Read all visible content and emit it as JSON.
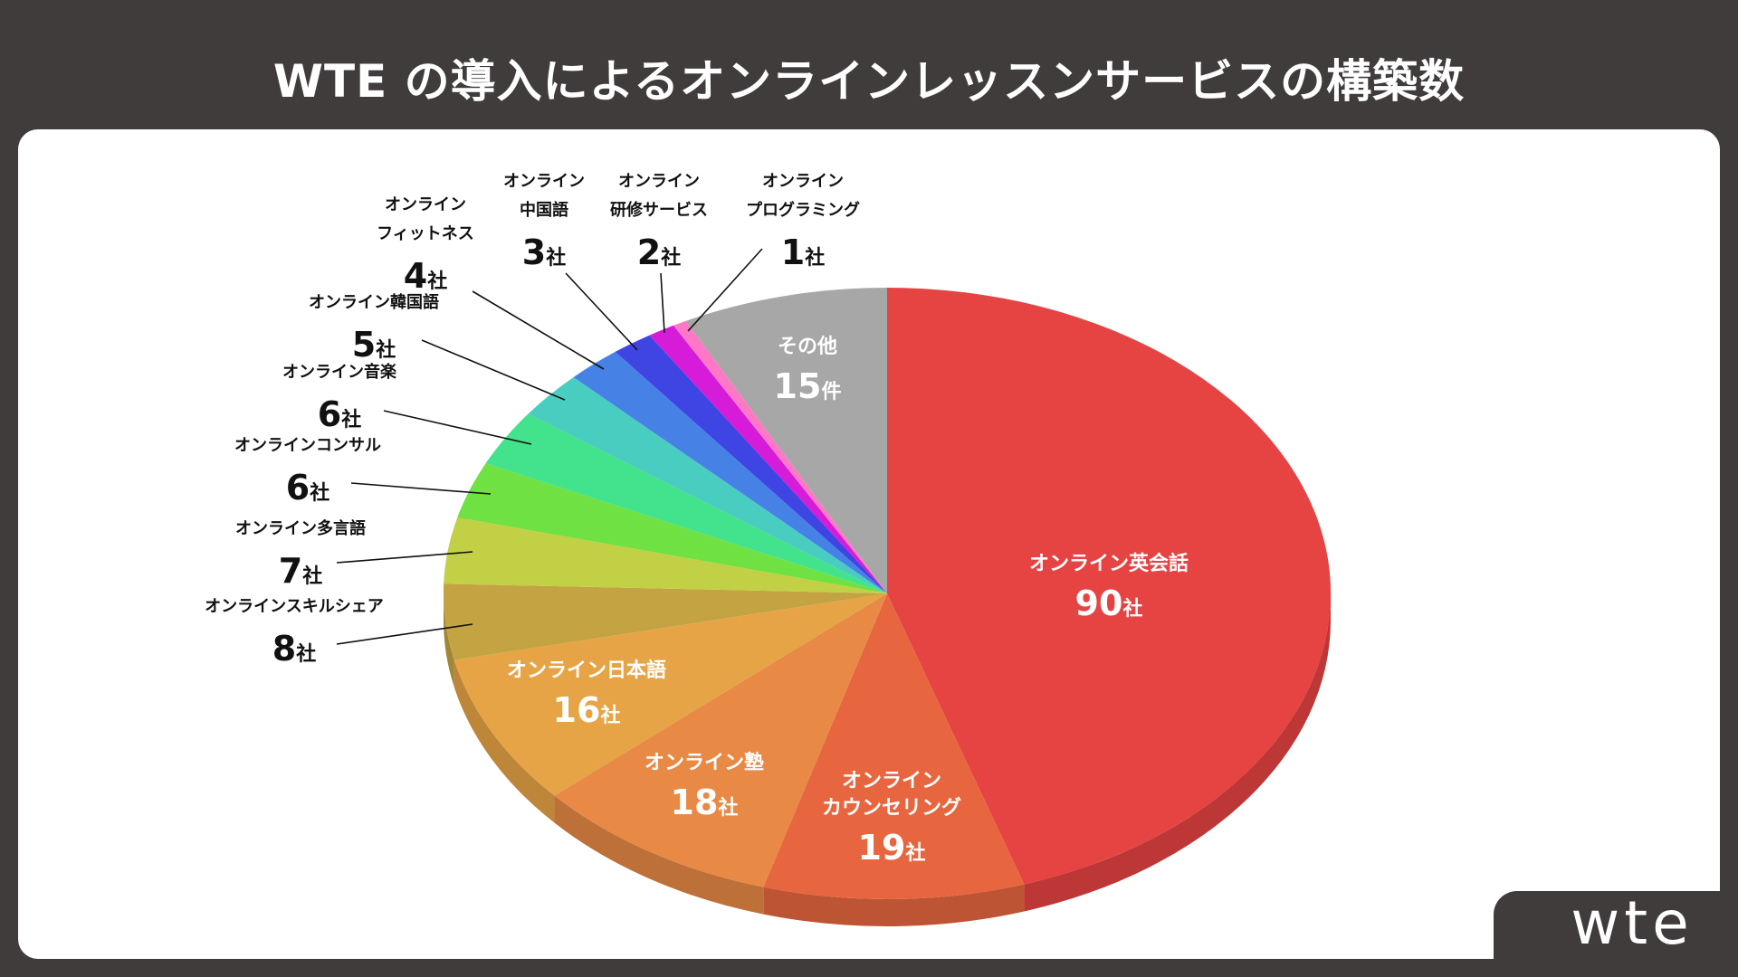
{
  "title": "WTE の導入によるオンラインレッスンサービスの構築数",
  "logo": "wte",
  "chart_data": {
    "type": "pie",
    "title": "WTE の導入によるオンラインレッスンサービスの構築数",
    "slices": [
      {
        "label": "オンライン英会話",
        "value": 90,
        "unit": "社",
        "color": "#e64343"
      },
      {
        "label": "オンライン\nカウンセリング",
        "value": 19,
        "unit": "社",
        "color": "#e7663f"
      },
      {
        "label": "オンライン塾",
        "value": 18,
        "unit": "社",
        "color": "#e88946"
      },
      {
        "label": "オンライン日本語",
        "value": 16,
        "unit": "社",
        "color": "#e6a446"
      },
      {
        "label": "オンラインスキルシェア",
        "value": 8,
        "unit": "社",
        "color": "#c4a342"
      },
      {
        "label": "オンライン多言語",
        "value": 7,
        "unit": "社",
        "color": "#c2d045"
      },
      {
        "label": "オンラインコンサル",
        "value": 6,
        "unit": "社",
        "color": "#6fe142"
      },
      {
        "label": "オンライン音楽",
        "value": 6,
        "unit": "社",
        "color": "#43e28c"
      },
      {
        "label": "オンライン韓国語",
        "value": 5,
        "unit": "社",
        "color": "#4acdc1"
      },
      {
        "label": "オンライン\nフィットネス",
        "value": 4,
        "unit": "社",
        "color": "#4682e6"
      },
      {
        "label": "オンライン\n中国語",
        "value": 3,
        "unit": "社",
        "color": "#3f45e3"
      },
      {
        "label": "オンライン\n研修サービス",
        "value": 2,
        "unit": "社",
        "color": "#d61bd9"
      },
      {
        "label": "オンライン\nプログラミング",
        "value": 1,
        "unit": "社",
        "color": "#ff77c6"
      },
      {
        "label": "その他",
        "value": 15,
        "unit": "件",
        "color": "#a7a7a7"
      }
    ]
  }
}
